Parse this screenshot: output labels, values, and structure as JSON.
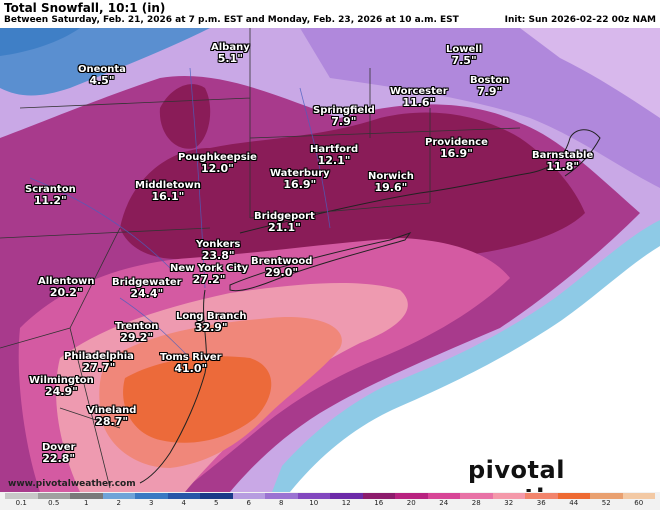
{
  "header": {
    "title": "Total Snowfall, 10:1 (in)",
    "subtitle": "Between Saturday, Feb. 21, 2026 at 7 p.m. EST and Monday, Feb. 23, 2026 at 10 a.m. EST",
    "init": "Init: Sun 2026-02-22 00z NAM"
  },
  "footer": {
    "website": "www.pivotalweather.com",
    "brand": "pivotal weather"
  },
  "legend": {
    "ticks": [
      "0.1",
      "0.5",
      "1",
      "2",
      "3",
      "4",
      "5",
      "6",
      "8",
      "10",
      "12",
      "16",
      "20",
      "24",
      "28",
      "32",
      "36",
      "44",
      "52",
      "60"
    ],
    "colors": [
      "#c8c8c8",
      "#a0a0a0",
      "#7a7a7a",
      "#6fa3d8",
      "#3a79c3",
      "#2856a8",
      "#1a3a88",
      "#b79de0",
      "#9b73d2",
      "#8248bf",
      "#6c2aa8",
      "#8c1c6c",
      "#b82280",
      "#d74596",
      "#e872a6",
      "#f499aa",
      "#f2846c",
      "#ee6a32",
      "#e9a070",
      "#f3c9a4"
    ]
  },
  "cities": [
    {
      "name": "Oneonta",
      "value": "4.5\""
    },
    {
      "name": "Albany",
      "value": "5.1\""
    },
    {
      "name": "Lowell",
      "value": "7.5\""
    },
    {
      "name": "Boston",
      "value": "7.9\""
    },
    {
      "name": "Worcester",
      "value": "11.6\""
    },
    {
      "name": "Springfield",
      "value": "7.9\""
    },
    {
      "name": "Hartford",
      "value": "12.1\""
    },
    {
      "name": "Providence",
      "value": "16.9\""
    },
    {
      "name": "Barnstable",
      "value": "11.8\""
    },
    {
      "name": "Poughkeepsie",
      "value": "12.0\""
    },
    {
      "name": "Waterbury",
      "value": "16.9\""
    },
    {
      "name": "Norwich",
      "value": "19.6\""
    },
    {
      "name": "Scranton",
      "value": "11.2\""
    },
    {
      "name": "Middletown",
      "value": "16.1\""
    },
    {
      "name": "Bridgeport",
      "value": "21.1\""
    },
    {
      "name": "Yonkers",
      "value": "23.8\""
    },
    {
      "name": "Brentwood",
      "value": "29.0\""
    },
    {
      "name": "New York City",
      "value": "27.2\""
    },
    {
      "name": "Allentown",
      "value": "20.2\""
    },
    {
      "name": "Bridgewater",
      "value": "24.4\""
    },
    {
      "name": "Long Branch",
      "value": "32.9\""
    },
    {
      "name": "Trenton",
      "value": "29.2\""
    },
    {
      "name": "Philadelphia",
      "value": "27.7\""
    },
    {
      "name": "Toms River",
      "value": "41.0\""
    },
    {
      "name": "Wilmington",
      "value": "24.9\""
    },
    {
      "name": "Vineland",
      "value": "28.7\""
    },
    {
      "name": "Dover",
      "value": "22.8\""
    }
  ]
}
